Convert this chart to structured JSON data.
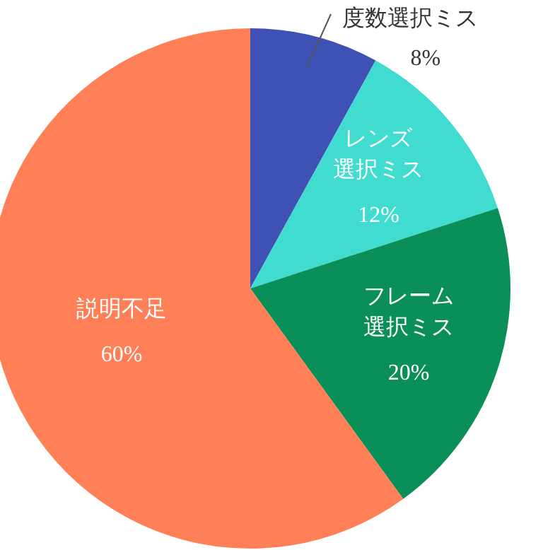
{
  "chart_data": {
    "type": "pie",
    "categories": [
      "度数選択ミス",
      "レンズ選択ミス",
      "フレーム選択ミス",
      "説明不足"
    ],
    "values": [
      8,
      12,
      20,
      60
    ],
    "colors": [
      "#3f51b5",
      "#41dcd0",
      "#0b8f58",
      "#ff7f57"
    ],
    "value_labels": [
      "8%",
      "12%",
      "20%",
      "60%"
    ]
  }
}
